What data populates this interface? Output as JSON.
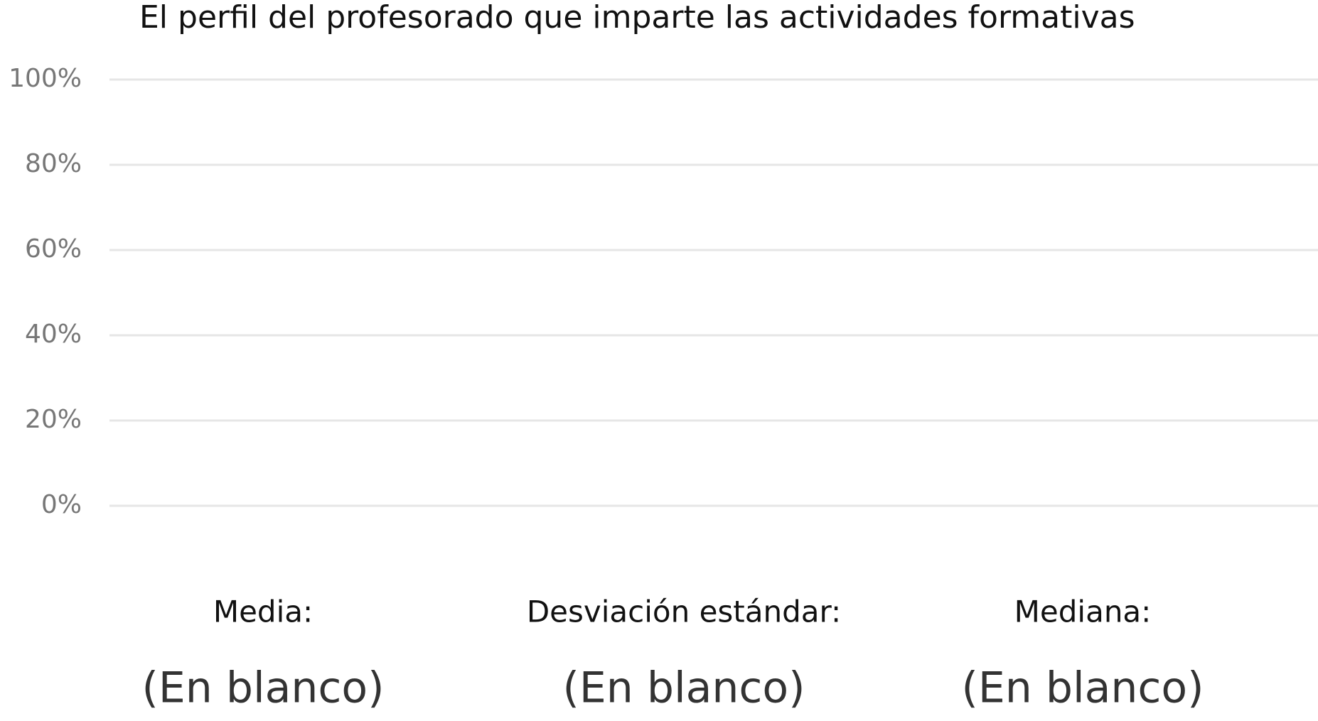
{
  "chart_data": {
    "type": "bar",
    "title": "El perfil del profesorado que imparte las actividades formativas",
    "ylim": [
      0,
      100
    ],
    "yticks": [
      {
        "value": 0,
        "label": "0%"
      },
      {
        "value": 20,
        "label": "20%"
      },
      {
        "value": 40,
        "label": "40%"
      },
      {
        "value": 60,
        "label": "60%"
      },
      {
        "value": 80,
        "label": "80%"
      },
      {
        "value": 100,
        "label": "100%"
      }
    ],
    "grid": true
  },
  "cards": [
    {
      "label": "Media:",
      "value": "(En blanco)"
    },
    {
      "label": "Desviación estándar:",
      "value": "(En blanco)"
    },
    {
      "label": "Mediana:",
      "value": "(En blanco)"
    }
  ]
}
